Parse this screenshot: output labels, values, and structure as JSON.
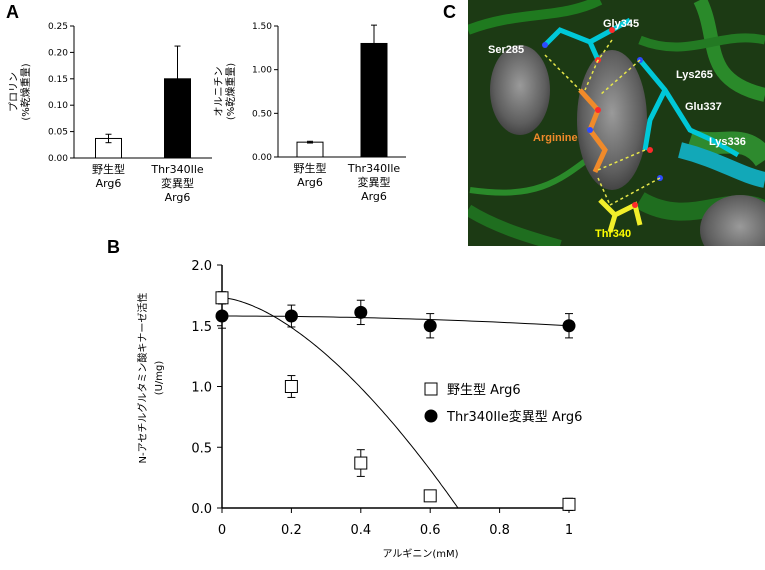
{
  "panels": {
    "a": "A",
    "b": "B",
    "c": "C"
  },
  "colors": {
    "bar_wt": "#ffffff",
    "bar_mut": "#000000",
    "mol_bg": "#1c3a14",
    "residue_white": "#ffffff",
    "residue_arg": "#f08a2a",
    "residue_thr": "#ffff00"
  },
  "chart_data": [
    {
      "type": "bar",
      "ylabel_lines": [
        "プロリン",
        "(%乾燥重量)"
      ],
      "ylim": [
        0,
        0.25
      ],
      "yticks": [
        "0.00",
        "0.05",
        "0.10",
        "0.15",
        "0.20",
        "0.25"
      ],
      "categories": [
        [
          "野生型",
          "Arg6"
        ],
        [
          "Thr340Ile",
          "変異型",
          "Arg6"
        ]
      ],
      "values": [
        0.037,
        0.15
      ],
      "errors": [
        0.008,
        0.062
      ]
    },
    {
      "type": "bar",
      "ylabel_lines": [
        "オルニチン",
        "(%乾燥重量)"
      ],
      "ylim": [
        0,
        1.5
      ],
      "yticks": [
        "0.00",
        "0.50",
        "1.00",
        "1.50"
      ],
      "categories": [
        [
          "野生型",
          "Arg6"
        ],
        [
          "Thr340Ile",
          "変異型",
          "Arg6"
        ]
      ],
      "values": [
        0.17,
        1.3
      ],
      "errors": [
        0.01,
        0.21
      ]
    },
    {
      "type": "scatter",
      "xlabel": "アルギニン(mM)",
      "ylabel_lines": [
        "N-アセチルグルタミン酸キナーゼ活性",
        "(U/mg)"
      ],
      "xlim": [
        0,
        1
      ],
      "ylim": [
        0,
        2.0
      ],
      "xticks": [
        "0",
        "0.2",
        "0.4",
        "0.6",
        "0.8",
        "1"
      ],
      "yticks": [
        "0.0",
        "0.5",
        "1.0",
        "1.5",
        "2.0"
      ],
      "series": [
        {
          "name": "野生型 Arg6",
          "marker": "open-square",
          "x": [
            0,
            0.2,
            0.4,
            0.6,
            1.0
          ],
          "y": [
            1.73,
            1.0,
            0.37,
            0.1,
            0.03
          ],
          "errors": [
            0.05,
            0.09,
            0.11,
            0.02,
            0.05
          ]
        },
        {
          "name": "Thr340Ile変異型 Arg6",
          "marker": "filled-circle",
          "x": [
            0,
            0.2,
            0.4,
            0.6,
            1.0
          ],
          "y": [
            1.58,
            1.58,
            1.61,
            1.5,
            1.5
          ],
          "errors": [
            0.1,
            0.09,
            0.1,
            0.1,
            0.1
          ]
        }
      ]
    }
  ],
  "structure": {
    "labels": [
      "Gly345",
      "Ser285",
      "Lys265",
      "Glu337",
      "Lys336",
      "Arginine",
      "Thr340"
    ]
  }
}
